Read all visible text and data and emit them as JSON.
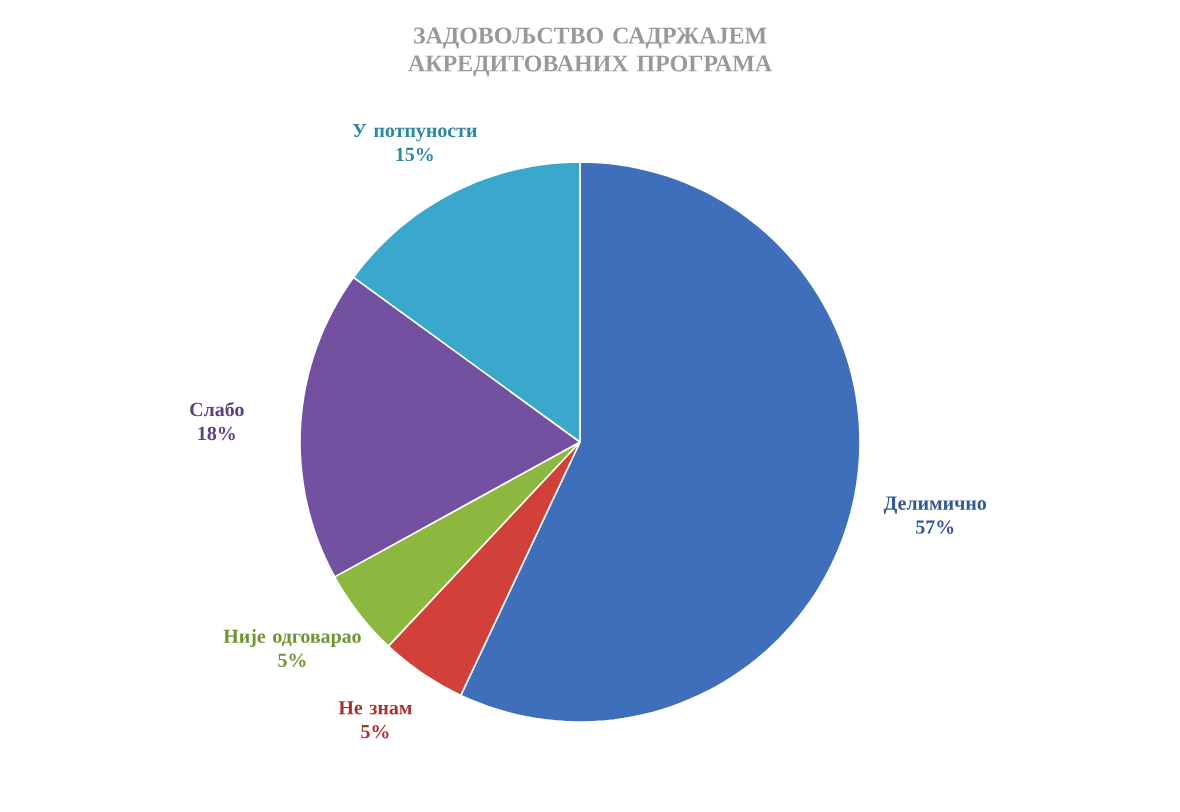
{
  "chart_data": {
    "type": "pie",
    "title": "ЗАДОВОЉСТВО САДРЖАЈЕМ АКРЕДИТОВАНИХ ПРОГРАМА",
    "categories": [
      "Делимично",
      "Не знам",
      "Није одговарао",
      "Слабо",
      "У потпуности"
    ],
    "values": [
      57,
      5,
      5,
      18,
      15
    ],
    "value_labels": [
      "57%",
      "5%",
      "5%",
      "18%",
      "15%"
    ],
    "colors": [
      "#3f6fba",
      "#d2403a",
      "#8cb83f",
      "#7451a0",
      "#3aa8cc"
    ]
  }
}
